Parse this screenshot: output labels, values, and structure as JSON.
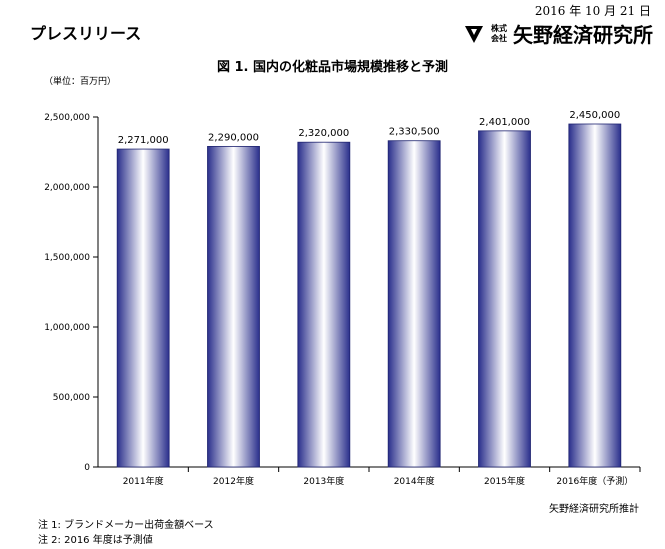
{
  "header": {
    "press_label": "プレスリリース",
    "date": "2016 年 10 月 21 日",
    "company_legal_top": "株式",
    "company_legal_bottom": "会社",
    "company_name": "矢野経済研究所",
    "logo_icon": "yano-logo-icon"
  },
  "chart_data": {
    "type": "bar",
    "title": "図 1.  国内の化粧品市場規模推移と予測",
    "unit_label": "（単位：百万円）",
    "categories": [
      "2011年度",
      "2012年度",
      "2013年度",
      "2014年度",
      "2015年度",
      "2016年度（予測）"
    ],
    "values": [
      2271000,
      2290000,
      2320000,
      2330500,
      2401000,
      2450000
    ],
    "value_labels": [
      "2,271,000",
      "2,290,000",
      "2,320,000",
      "2,330,500",
      "2,401,000",
      "2,450,000"
    ],
    "ylim": [
      0,
      2500000
    ],
    "yticks": [
      0,
      500000,
      1000000,
      1500000,
      2000000,
      2500000
    ],
    "ytick_labels": [
      "0",
      "500,000",
      "1,000,000",
      "1,500,000",
      "2,000,000",
      "2,500,000"
    ],
    "grid": false,
    "bar_color_edge": "#2a2f8c",
    "bar_color_center": "#ffffff"
  },
  "footer": {
    "estimate": "矢野経済研究所推計",
    "note1": "注 1:  ブランドメーカー出荷金額ベース",
    "note2": "注 2:  2016 年度は予測値"
  }
}
